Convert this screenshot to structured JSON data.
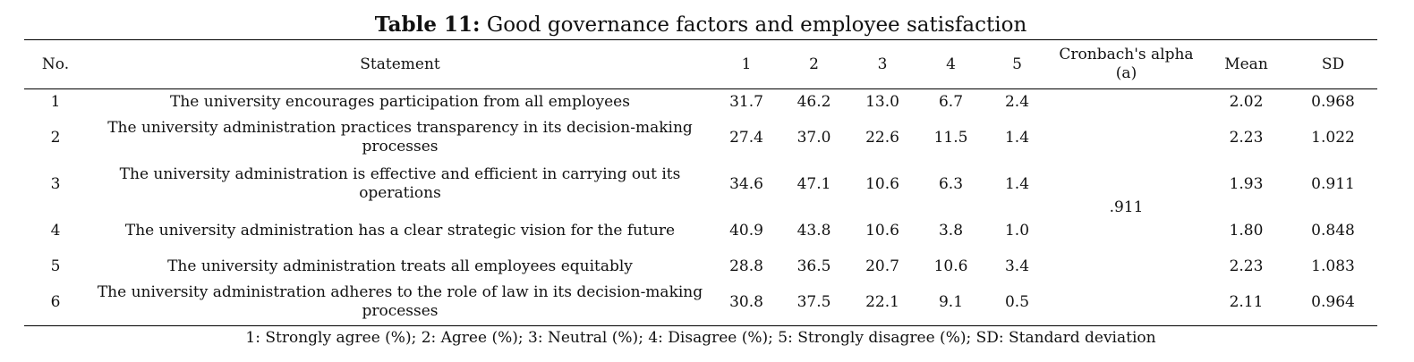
{
  "caption": {
    "label": "Table 11:",
    "text": "Good governance factors and employee satisfaction"
  },
  "headers": [
    "No.",
    "Statement",
    "1",
    "2",
    "3",
    "4",
    "5",
    "Cronbach's alpha (a)",
    "Mean",
    "SD"
  ],
  "rows": [
    {
      "no": "1",
      "statement": "The university encourages participation from all employees",
      "v1": "31.7",
      "v2": "46.2",
      "v3": "13.0",
      "v4": "6.7",
      "v5": "2.4",
      "mean": "2.02",
      "sd": "0.968"
    },
    {
      "no": "2",
      "statement": "The university administration practices transparency in its decision-making processes",
      "v1": "27.4",
      "v2": "37.0",
      "v3": "22.6",
      "v4": "11.5",
      "v5": "1.4",
      "mean": "2.23",
      "sd": "1.022"
    },
    {
      "no": "3",
      "statement": "The university administration is effective and efficient in carrying out its operations",
      "v1": "34.6",
      "v2": "47.1",
      "v3": "10.6",
      "v4": "6.3",
      "v5": "1.4",
      "mean": "1.93",
      "sd": "0.911"
    },
    {
      "no": "4",
      "statement": "The university administration has a clear strategic vision for the future",
      "v1": "40.9",
      "v2": "43.8",
      "v3": "10.6",
      "v4": "3.8",
      "v5": "1.0",
      "mean": "1.80",
      "sd": "0.848"
    },
    {
      "no": "5",
      "statement": "The university administration treats all employees equitably",
      "v1": "28.8",
      "v2": "36.5",
      "v3": "20.7",
      "v4": "10.6",
      "v5": "3.4",
      "mean": "2.23",
      "sd": "1.083"
    },
    {
      "no": "6",
      "statement": "The university administration adheres to the role of law in its decision-making processes",
      "v1": "30.8",
      "v2": "37.5",
      "v3": "22.1",
      "v4": "9.1",
      "v5": "0.5",
      "mean": "2.11",
      "sd": "0.964"
    }
  ],
  "cronbach_alpha": ".911",
  "footnote": "1: Strongly agree (%); 2: Agree (%); 3: Neutral (%); 4: Disagree (%); 5: Strongly disagree (%); SD: Standard deviation"
}
